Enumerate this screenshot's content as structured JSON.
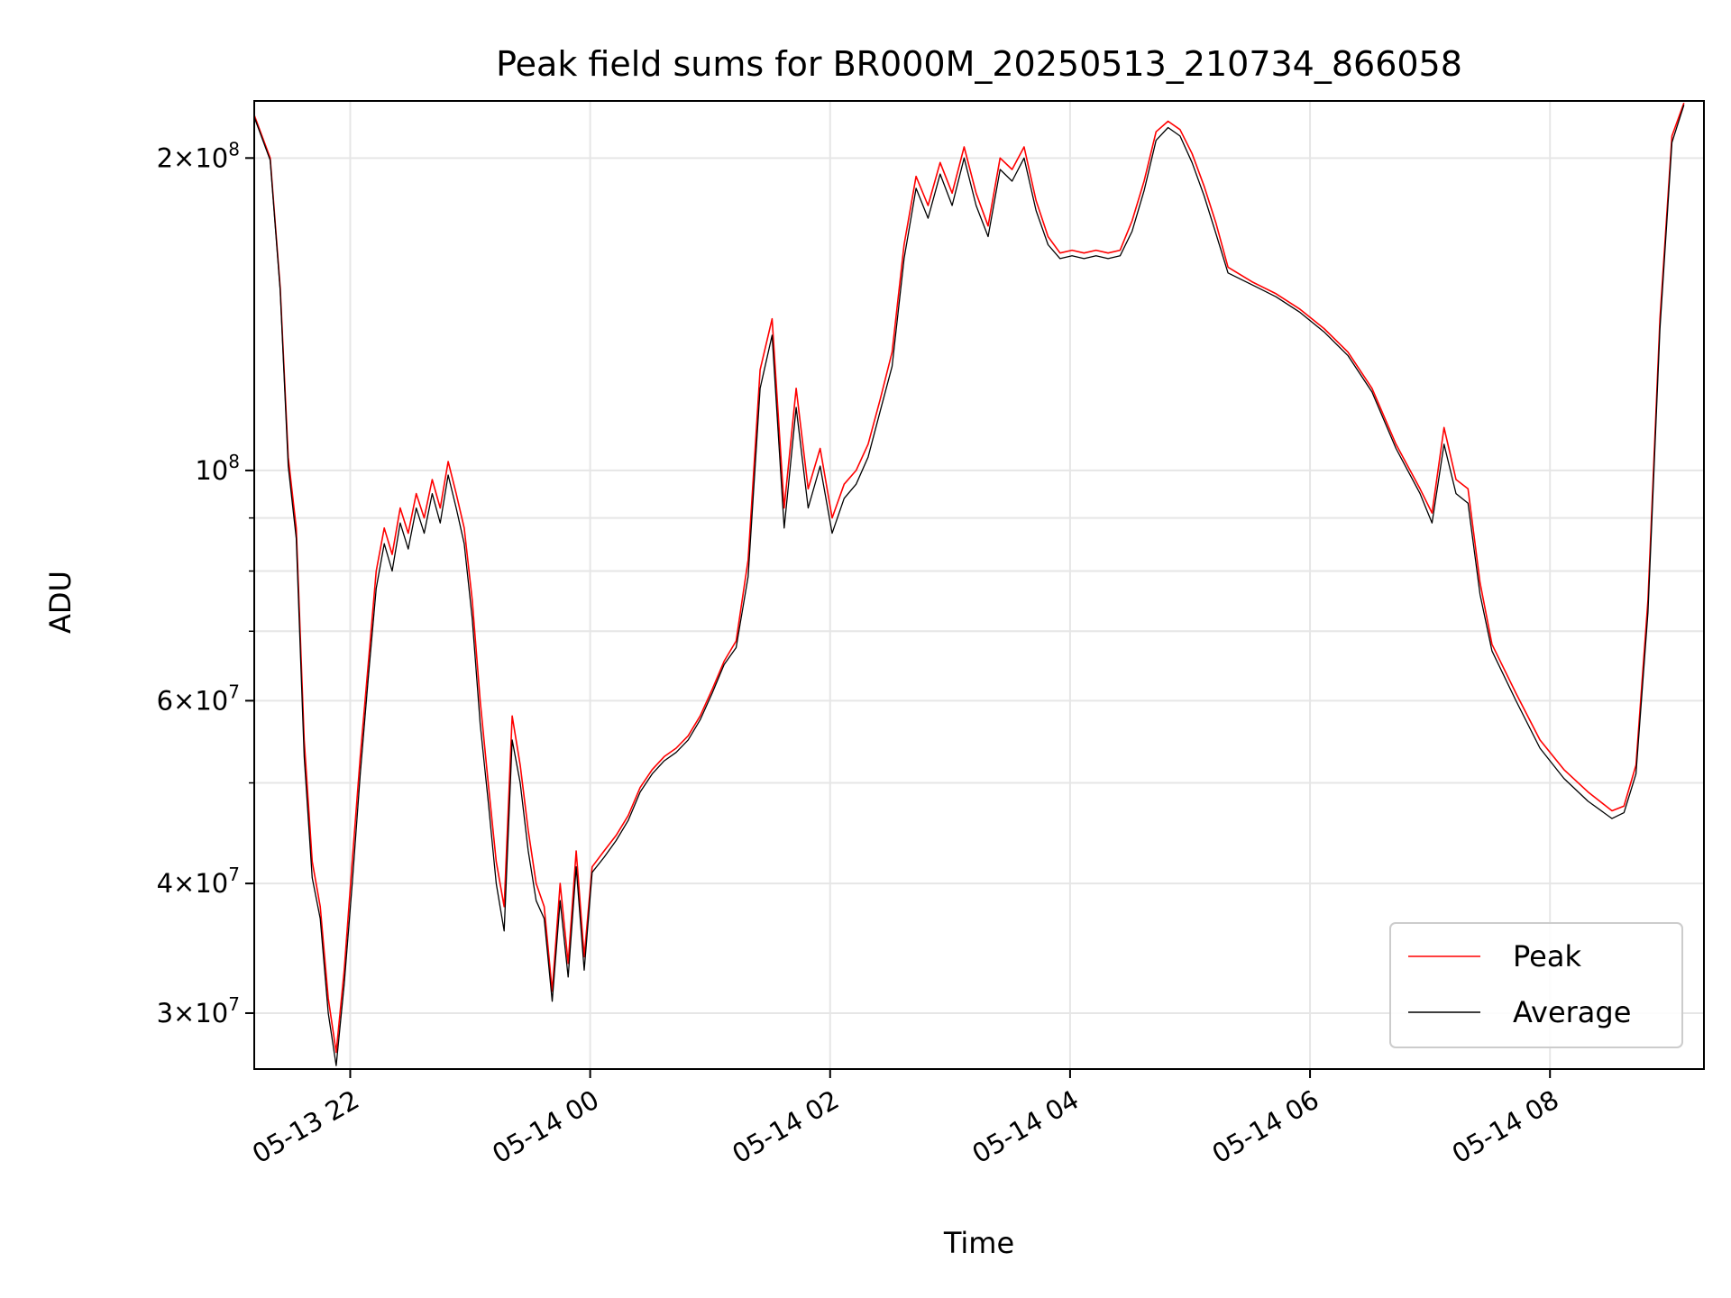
{
  "chart_data": {
    "type": "line",
    "title": "Peak field sums for BR000M_20250513_210734_866058",
    "xlabel": "Time",
    "ylabel": "ADU",
    "yscale": "log",
    "ylim": [
      26500000,
      227000000
    ],
    "xlim": [
      "05-13 21:12",
      "05-14 09:17"
    ],
    "grid": true,
    "legend_position": "lower-right",
    "x_ticks": [
      {
        "time": "05-13 22:00",
        "label": "05-13 22"
      },
      {
        "time": "05-14 00:00",
        "label": "05-14 00"
      },
      {
        "time": "05-14 02:00",
        "label": "05-14 02"
      },
      {
        "time": "05-14 04:00",
        "label": "05-14 04"
      },
      {
        "time": "05-14 06:00",
        "label": "05-14 06"
      },
      {
        "time": "05-14 08:00",
        "label": "05-14 08"
      }
    ],
    "y_major_ticks": [
      {
        "value": 30000000,
        "mantissa": "3",
        "exponent": "7"
      },
      {
        "value": 40000000,
        "mantissa": "4",
        "exponent": "7"
      },
      {
        "value": 60000000,
        "mantissa": "6",
        "exponent": "7"
      },
      {
        "value": 100000000,
        "mantissa": "",
        "exponent": "8"
      },
      {
        "value": 200000000,
        "mantissa": "2",
        "exponent": "8"
      }
    ],
    "y_minor_gridlines": [
      50000000,
      70000000,
      80000000,
      90000000
    ],
    "series": [
      {
        "name": "Peak",
        "color": "#ff0000",
        "points": [
          [
            "05-13 21:12",
            220000000
          ],
          [
            "05-13 21:20",
            200000000
          ],
          [
            "05-13 21:25",
            150000000
          ],
          [
            "05-13 21:29",
            103000000
          ],
          [
            "05-13 21:33",
            88000000
          ],
          [
            "05-13 21:37",
            55000000
          ],
          [
            "05-13 21:41",
            42000000
          ],
          [
            "05-13 21:45",
            38000000
          ],
          [
            "05-13 21:49",
            31000000
          ],
          [
            "05-13 21:53",
            27500000
          ],
          [
            "05-13 21:57",
            33000000
          ],
          [
            "05-13 22:01",
            42000000
          ],
          [
            "05-13 22:05",
            53000000
          ],
          [
            "05-13 22:09",
            65000000
          ],
          [
            "05-13 22:13",
            80000000
          ],
          [
            "05-13 22:17",
            88000000
          ],
          [
            "05-13 22:21",
            83000000
          ],
          [
            "05-13 22:25",
            92000000
          ],
          [
            "05-13 22:29",
            87000000
          ],
          [
            "05-13 22:33",
            95000000
          ],
          [
            "05-13 22:37",
            90000000
          ],
          [
            "05-13 22:41",
            98000000
          ],
          [
            "05-13 22:45",
            92000000
          ],
          [
            "05-13 22:49",
            102000000
          ],
          [
            "05-13 22:53",
            95000000
          ],
          [
            "05-13 22:57",
            88000000
          ],
          [
            "05-13 23:01",
            75000000
          ],
          [
            "05-13 23:05",
            60000000
          ],
          [
            "05-13 23:09",
            50000000
          ],
          [
            "05-13 23:13",
            42000000
          ],
          [
            "05-13 23:17",
            38000000
          ],
          [
            "05-13 23:21",
            58000000
          ],
          [
            "05-13 23:25",
            52000000
          ],
          [
            "05-13 23:29",
            45000000
          ],
          [
            "05-13 23:33",
            40000000
          ],
          [
            "05-13 23:37",
            38000000
          ],
          [
            "05-13 23:41",
            31500000
          ],
          [
            "05-13 23:45",
            40000000
          ],
          [
            "05-13 23:49",
            33500000
          ],
          [
            "05-13 23:53",
            43000000
          ],
          [
            "05-13 23:57",
            34000000
          ],
          [
            "05-14 00:01",
            41500000
          ],
          [
            "05-14 00:07",
            43000000
          ],
          [
            "05-14 00:13",
            44500000
          ],
          [
            "05-14 00:19",
            46500000
          ],
          [
            "05-14 00:25",
            49500000
          ],
          [
            "05-14 00:31",
            51500000
          ],
          [
            "05-14 00:37",
            53000000
          ],
          [
            "05-14 00:43",
            54000000
          ],
          [
            "05-14 00:49",
            55500000
          ],
          [
            "05-14 00:55",
            58000000
          ],
          [
            "05-14 01:01",
            61500000
          ],
          [
            "05-14 01:07",
            65500000
          ],
          [
            "05-14 01:13",
            68500000
          ],
          [
            "05-14 01:19",
            82000000
          ],
          [
            "05-14 01:25",
            125000000
          ],
          [
            "05-14 01:31",
            140000000
          ],
          [
            "05-14 01:37",
            92000000
          ],
          [
            "05-14 01:43",
            120000000
          ],
          [
            "05-14 01:49",
            96000000
          ],
          [
            "05-14 01:55",
            105000000
          ],
          [
            "05-14 02:01",
            90000000
          ],
          [
            "05-14 02:07",
            97000000
          ],
          [
            "05-14 02:13",
            100000000
          ],
          [
            "05-14 02:19",
            106000000
          ],
          [
            "05-14 02:25",
            117000000
          ],
          [
            "05-14 02:31",
            130000000
          ],
          [
            "05-14 02:37",
            165000000
          ],
          [
            "05-14 02:43",
            192000000
          ],
          [
            "05-14 02:49",
            180000000
          ],
          [
            "05-14 02:55",
            198000000
          ],
          [
            "05-14 03:01",
            185000000
          ],
          [
            "05-14 03:07",
            205000000
          ],
          [
            "05-14 03:13",
            185000000
          ],
          [
            "05-14 03:19",
            172000000
          ],
          [
            "05-14 03:25",
            200000000
          ],
          [
            "05-14 03:31",
            195000000
          ],
          [
            "05-14 03:37",
            205000000
          ],
          [
            "05-14 03:43",
            182000000
          ],
          [
            "05-14 03:49",
            168000000
          ],
          [
            "05-14 03:55",
            162000000
          ],
          [
            "05-14 04:01",
            163000000
          ],
          [
            "05-14 04:07",
            162000000
          ],
          [
            "05-14 04:13",
            163000000
          ],
          [
            "05-14 04:19",
            162000000
          ],
          [
            "05-14 04:25",
            163000000
          ],
          [
            "05-14 04:31",
            174000000
          ],
          [
            "05-14 04:37",
            190000000
          ],
          [
            "05-14 04:43",
            212000000
          ],
          [
            "05-14 04:49",
            217000000
          ],
          [
            "05-14 04:55",
            213000000
          ],
          [
            "05-14 05:01",
            202000000
          ],
          [
            "05-14 05:07",
            188000000
          ],
          [
            "05-14 05:13",
            173000000
          ],
          [
            "05-14 05:19",
            157000000
          ],
          [
            "05-14 05:31",
            152000000
          ],
          [
            "05-14 05:43",
            148000000
          ],
          [
            "05-14 05:55",
            143000000
          ],
          [
            "05-14 06:07",
            137000000
          ],
          [
            "05-14 06:19",
            130000000
          ],
          [
            "05-14 06:31",
            120000000
          ],
          [
            "05-14 06:43",
            106000000
          ],
          [
            "05-14 06:55",
            96000000
          ],
          [
            "05-14 07:01",
            91000000
          ],
          [
            "05-14 07:07",
            110000000
          ],
          [
            "05-14 07:13",
            98000000
          ],
          [
            "05-14 07:19",
            96000000
          ],
          [
            "05-14 07:25",
            78000000
          ],
          [
            "05-14 07:31",
            68000000
          ],
          [
            "05-14 07:43",
            61000000
          ],
          [
            "05-14 07:55",
            55000000
          ],
          [
            "05-14 08:07",
            51500000
          ],
          [
            "05-14 08:19",
            49000000
          ],
          [
            "05-14 08:31",
            47000000
          ],
          [
            "05-14 08:37",
            47500000
          ],
          [
            "05-14 08:43",
            52000000
          ],
          [
            "05-14 08:49",
            75000000
          ],
          [
            "05-14 08:55",
            140000000
          ],
          [
            "05-14 09:01",
            210000000
          ],
          [
            "05-14 09:07",
            226000000
          ]
        ]
      },
      {
        "name": "Average",
        "color": "#000000",
        "points": [
          [
            "05-13 21:12",
            219000000
          ],
          [
            "05-13 21:20",
            199000000
          ],
          [
            "05-13 21:25",
            149000000
          ],
          [
            "05-13 21:29",
            101000000
          ],
          [
            "05-13 21:33",
            86000000
          ],
          [
            "05-13 21:37",
            53000000
          ],
          [
            "05-13 21:41",
            40500000
          ],
          [
            "05-13 21:45",
            37000000
          ],
          [
            "05-13 21:49",
            30000000
          ],
          [
            "05-13 21:53",
            26700000
          ],
          [
            "05-13 21:57",
            32000000
          ],
          [
            "05-13 22:01",
            40000000
          ],
          [
            "05-13 22:05",
            51000000
          ],
          [
            "05-13 22:09",
            63000000
          ],
          [
            "05-13 22:13",
            77000000
          ],
          [
            "05-13 22:17",
            85000000
          ],
          [
            "05-13 22:21",
            80000000
          ],
          [
            "05-13 22:25",
            89000000
          ],
          [
            "05-13 22:29",
            84000000
          ],
          [
            "05-13 22:33",
            92000000
          ],
          [
            "05-13 22:37",
            87000000
          ],
          [
            "05-13 22:41",
            95000000
          ],
          [
            "05-13 22:45",
            89000000
          ],
          [
            "05-13 22:49",
            99000000
          ],
          [
            "05-13 22:53",
            92000000
          ],
          [
            "05-13 22:57",
            85000000
          ],
          [
            "05-13 23:01",
            72000000
          ],
          [
            "05-13 23:05",
            57000000
          ],
          [
            "05-13 23:09",
            48000000
          ],
          [
            "05-13 23:13",
            40000000
          ],
          [
            "05-13 23:17",
            36000000
          ],
          [
            "05-13 23:21",
            55000000
          ],
          [
            "05-13 23:25",
            50000000
          ],
          [
            "05-13 23:29",
            43000000
          ],
          [
            "05-13 23:33",
            38500000
          ],
          [
            "05-13 23:37",
            37000000
          ],
          [
            "05-13 23:41",
            30800000
          ],
          [
            "05-13 23:45",
            38500000
          ],
          [
            "05-13 23:49",
            32500000
          ],
          [
            "05-13 23:53",
            41500000
          ],
          [
            "05-13 23:57",
            33000000
          ],
          [
            "05-14 00:01",
            41000000
          ],
          [
            "05-14 00:07",
            42400000
          ],
          [
            "05-14 00:13",
            44000000
          ],
          [
            "05-14 00:19",
            46000000
          ],
          [
            "05-14 00:25",
            49000000
          ],
          [
            "05-14 00:31",
            51000000
          ],
          [
            "05-14 00:37",
            52500000
          ],
          [
            "05-14 00:43",
            53500000
          ],
          [
            "05-14 00:49",
            55000000
          ],
          [
            "05-14 00:55",
            57500000
          ],
          [
            "05-14 01:01",
            61000000
          ],
          [
            "05-14 01:07",
            65000000
          ],
          [
            "05-14 01:13",
            67500000
          ],
          [
            "05-14 01:19",
            79000000
          ],
          [
            "05-14 01:25",
            120000000
          ],
          [
            "05-14 01:31",
            135000000
          ],
          [
            "05-14 01:37",
            88000000
          ],
          [
            "05-14 01:43",
            115000000
          ],
          [
            "05-14 01:49",
            92000000
          ],
          [
            "05-14 01:55",
            101000000
          ],
          [
            "05-14 02:01",
            87000000
          ],
          [
            "05-14 02:07",
            94000000
          ],
          [
            "05-14 02:13",
            97000000
          ],
          [
            "05-14 02:19",
            103000000
          ],
          [
            "05-14 02:25",
            114000000
          ],
          [
            "05-14 02:31",
            126000000
          ],
          [
            "05-14 02:37",
            160000000
          ],
          [
            "05-14 02:43",
            187000000
          ],
          [
            "05-14 02:49",
            175000000
          ],
          [
            "05-14 02:55",
            193000000
          ],
          [
            "05-14 03:01",
            180000000
          ],
          [
            "05-14 03:07",
            200000000
          ],
          [
            "05-14 03:13",
            180000000
          ],
          [
            "05-14 03:19",
            168000000
          ],
          [
            "05-14 03:25",
            195000000
          ],
          [
            "05-14 03:31",
            190000000
          ],
          [
            "05-14 03:37",
            200000000
          ],
          [
            "05-14 03:43",
            178000000
          ],
          [
            "05-14 03:49",
            165000000
          ],
          [
            "05-14 03:55",
            160000000
          ],
          [
            "05-14 04:01",
            161000000
          ],
          [
            "05-14 04:07",
            160000000
          ],
          [
            "05-14 04:13",
            161000000
          ],
          [
            "05-14 04:19",
            160000000
          ],
          [
            "05-14 04:25",
            161000000
          ],
          [
            "05-14 04:31",
            170000000
          ],
          [
            "05-14 04:37",
            186000000
          ],
          [
            "05-14 04:43",
            208000000
          ],
          [
            "05-14 04:49",
            214000000
          ],
          [
            "05-14 04:55",
            210000000
          ],
          [
            "05-14 05:01",
            198000000
          ],
          [
            "05-14 05:07",
            184000000
          ],
          [
            "05-14 05:13",
            169000000
          ],
          [
            "05-14 05:19",
            155000000
          ],
          [
            "05-14 05:31",
            151000000
          ],
          [
            "05-14 05:43",
            147000000
          ],
          [
            "05-14 05:55",
            142000000
          ],
          [
            "05-14 06:07",
            136000000
          ],
          [
            "05-14 06:19",
            129000000
          ],
          [
            "05-14 06:31",
            119000000
          ],
          [
            "05-14 06:43",
            105000000
          ],
          [
            "05-14 06:55",
            95000000
          ],
          [
            "05-14 07:01",
            89000000
          ],
          [
            "05-14 07:07",
            106000000
          ],
          [
            "05-14 07:13",
            95000000
          ],
          [
            "05-14 07:19",
            93000000
          ],
          [
            "05-14 07:25",
            76000000
          ],
          [
            "05-14 07:31",
            67000000
          ],
          [
            "05-14 07:43",
            60000000
          ],
          [
            "05-14 07:55",
            54000000
          ],
          [
            "05-14 08:07",
            50500000
          ],
          [
            "05-14 08:19",
            48000000
          ],
          [
            "05-14 08:31",
            46200000
          ],
          [
            "05-14 08:37",
            46800000
          ],
          [
            "05-14 08:43",
            51000000
          ],
          [
            "05-14 08:49",
            73000000
          ],
          [
            "05-14 08:55",
            137000000
          ],
          [
            "05-14 09:01",
            207000000
          ],
          [
            "05-14 09:07",
            225000000
          ]
        ]
      }
    ]
  }
}
